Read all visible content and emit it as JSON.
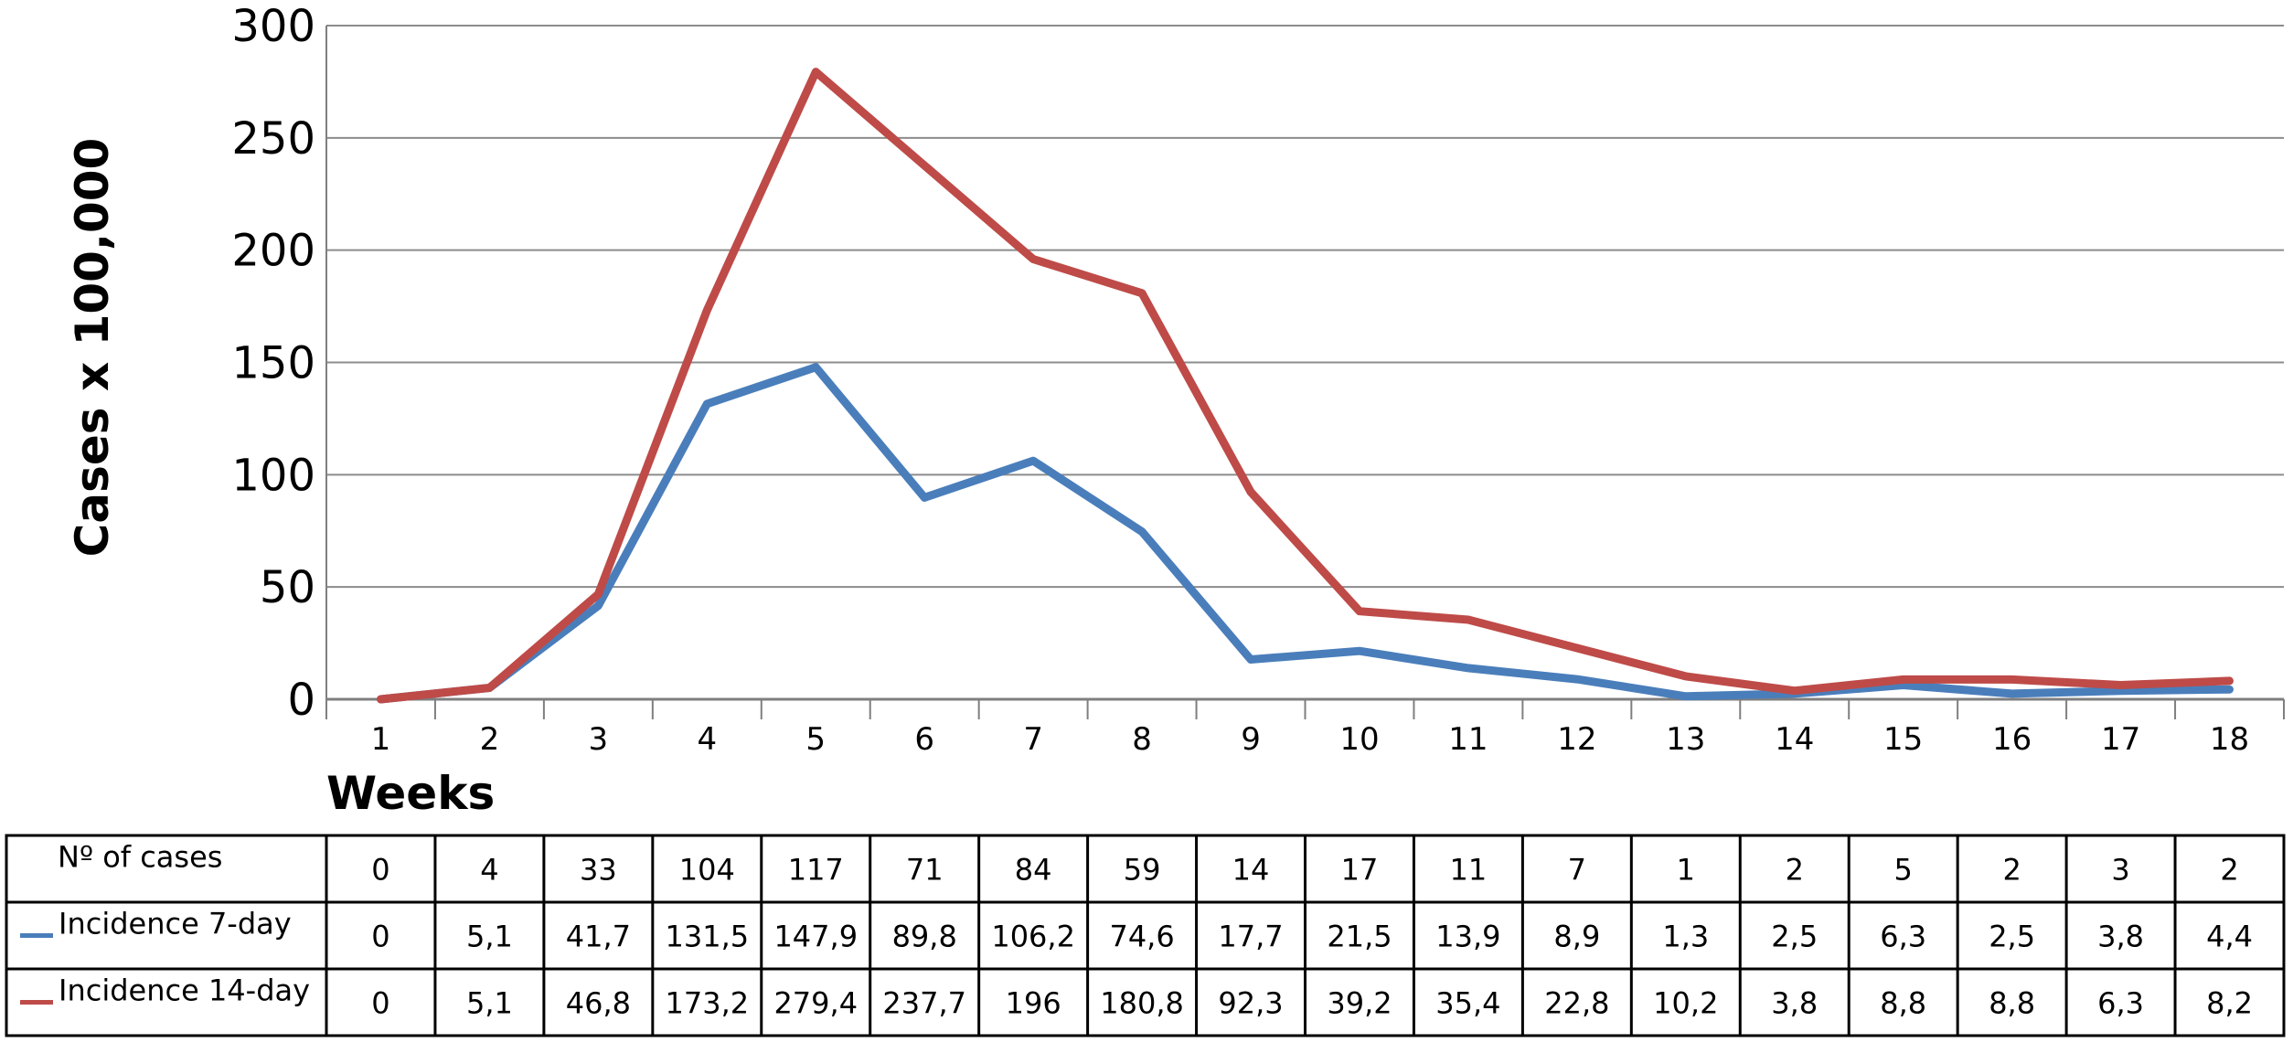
{
  "chart_data": {
    "type": "line",
    "xlabel": "Weeks",
    "ylabel": "Cases x 100,000",
    "ylim": [
      0,
      300
    ],
    "yticks": [
      0,
      50,
      100,
      150,
      200,
      250,
      300
    ],
    "grid": "horizontal",
    "x": [
      "1",
      "2",
      "3",
      "4",
      "5",
      "6",
      "7",
      "8",
      "9",
      "10",
      "11",
      "12",
      "13",
      "14",
      "15",
      "16",
      "17",
      "18"
    ],
    "series": [
      {
        "name": "Incidence 7-day",
        "color": "#4a7ebb",
        "values": [
          0,
          5.1,
          41.7,
          131.5,
          147.9,
          89.8,
          106.2,
          74.6,
          17.7,
          21.5,
          13.9,
          8.9,
          1.3,
          2.5,
          6.3,
          2.5,
          3.8,
          4.4
        ]
      },
      {
        "name": "Incidence 14-day",
        "color": "#be4b48",
        "values": [
          0,
          5.1,
          46.8,
          173.2,
          279.4,
          237.7,
          196,
          180.8,
          92.3,
          39.2,
          35.4,
          22.8,
          10.2,
          3.8,
          8.8,
          8.8,
          6.3,
          8.2
        ]
      }
    ],
    "table": {
      "rows": [
        {
          "label": "Nº of cases",
          "marker": "",
          "cells": [
            "0",
            "4",
            "33",
            "104",
            "117",
            "71",
            "84",
            "59",
            "14",
            "17",
            "11",
            "7",
            "1",
            "2",
            "5",
            "2",
            "3",
            "2"
          ]
        },
        {
          "label": "Incidence 7-day",
          "marker": "#4a7ebb",
          "cells": [
            "0",
            "5,1",
            "41,7",
            "131,5",
            "147,9",
            "89,8",
            "106,2",
            "74,6",
            "17,7",
            "21,5",
            "13,9",
            "8,9",
            "1,3",
            "2,5",
            "6,3",
            "2,5",
            "3,8",
            "4,4"
          ]
        },
        {
          "label": "Incidence 14-day",
          "marker": "#be4b48",
          "cells": [
            "0",
            "5,1",
            "46,8",
            "173,2",
            "279,4",
            "237,7",
            "196",
            "180,8",
            "92,3",
            "39,2",
            "35,4",
            "22,8",
            "10,2",
            "3,8",
            "8,8",
            "8,8",
            "6,3",
            "8,2"
          ]
        }
      ]
    }
  }
}
